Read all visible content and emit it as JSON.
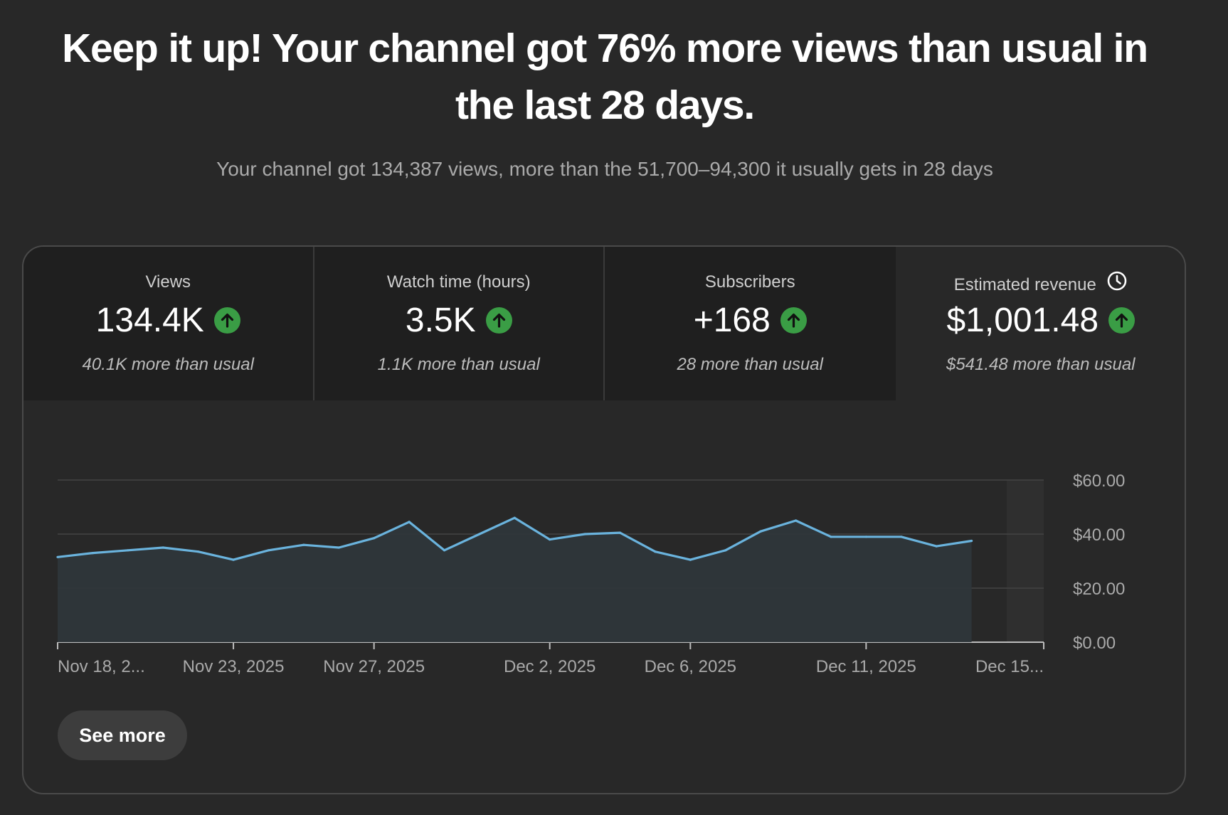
{
  "headline": "Keep it up! Your channel got 76% more views than usual in the last 28 days.",
  "subline": "Your channel got 134,387 views, more than the 51,700–94,300 it usually gets in 28 days",
  "metrics": [
    {
      "title": "Views",
      "value": "134.4K",
      "delta": "40.1K more than usual",
      "trend_icon": "arrow-up-icon"
    },
    {
      "title": "Watch time (hours)",
      "value": "3.5K",
      "delta": "1.1K more than usual",
      "trend_icon": "arrow-up-icon"
    },
    {
      "title": "Subscribers",
      "value": "+168",
      "delta": "28 more than usual",
      "trend_icon": "arrow-up-icon"
    },
    {
      "title": "Estimated revenue",
      "value": "$1,001.48",
      "delta": "$541.48 more than usual",
      "trend_icon": "arrow-up-icon",
      "extra_icon": "clock-icon"
    }
  ],
  "active_metric": "Estimated revenue",
  "see_more_label": "See more",
  "colors": {
    "background": "#282828",
    "tab_inactive": "#1f1f1f",
    "line": "#6ab3dd",
    "area": "#2f363b",
    "trend_up": "#3a9d45"
  },
  "chart_data": {
    "type": "area",
    "metric": "Estimated revenue",
    "ylim": [
      0,
      60
    ],
    "yticks": [
      "$0.00",
      "$20.00",
      "$40.00",
      "$60.00"
    ],
    "x_tick_labels": [
      "Nov 18, 2...",
      "Nov 23, 2025",
      "Nov 27, 2025",
      "Dec 2, 2025",
      "Dec 6, 2025",
      "Dec 11, 2025",
      "Dec 15..."
    ],
    "x_tick_days": [
      0,
      5,
      9,
      14,
      18,
      23,
      27
    ],
    "days": 27,
    "values": [
      31.5,
      33,
      34,
      35,
      33.5,
      30.5,
      34,
      36,
      35,
      38.5,
      44.5,
      34,
      40,
      46,
      38,
      40,
      40.5,
      33.5,
      30.5,
      34,
      41,
      45,
      39,
      39,
      39,
      35.5,
      37.5
    ],
    "grid": true,
    "partial_last_day": true
  }
}
